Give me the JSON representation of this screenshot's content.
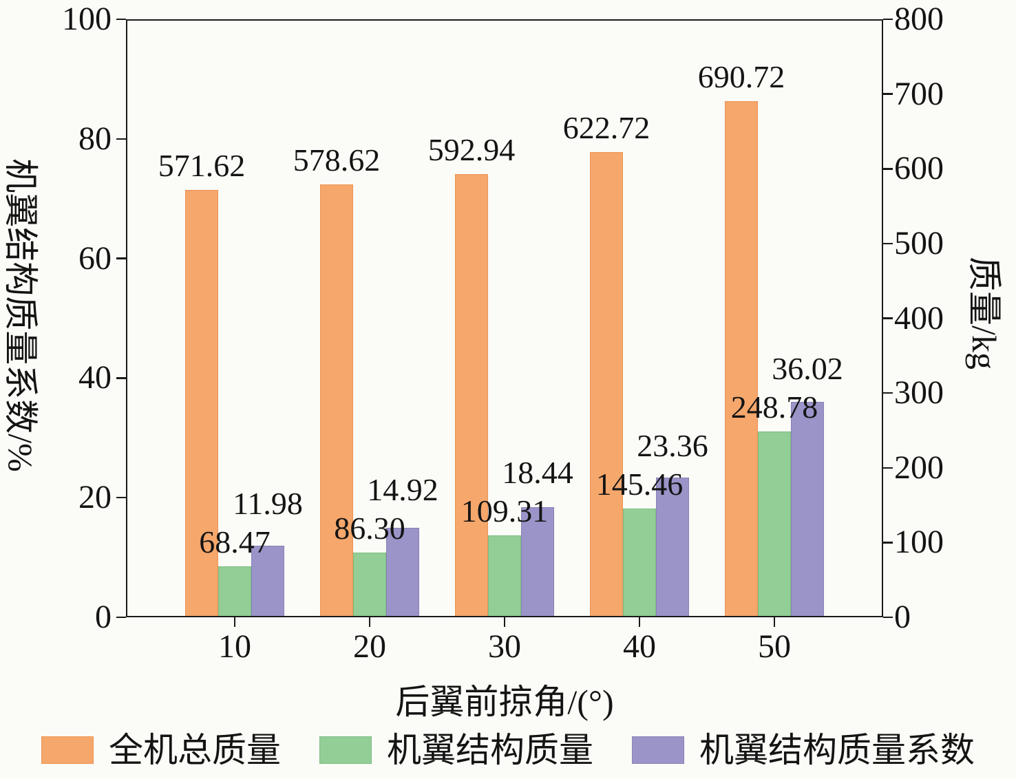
{
  "chart_data": {
    "type": "bar",
    "categories": [
      "10",
      "20",
      "30",
      "40",
      "50"
    ],
    "xlabel": "后翼前掠角/(°)",
    "ylabel_left": "机翼结构质量系数/%",
    "ylabel_right": "质量/kg",
    "ylim_left": [
      0,
      100
    ],
    "ylim_right": [
      0,
      800
    ],
    "left_ticks": [
      "0",
      "20",
      "40",
      "60",
      "80",
      "100"
    ],
    "right_ticks": [
      "0",
      "100",
      "200",
      "300",
      "400",
      "500",
      "600",
      "700",
      "800"
    ],
    "grid": false,
    "legend_position": "bottom",
    "axis_color": "#1a1a1a",
    "background_color": "#FBFBF7",
    "series": [
      {
        "key": "total-mass",
        "name": "全机总质量",
        "axis": "right",
        "color": "#F5A76C",
        "edge_color": "#EC9453",
        "values": [
          571.62,
          578.62,
          592.94,
          622.72,
          690.72
        ],
        "labels": [
          "571.62",
          "578.62",
          "592.94",
          "622.72",
          "690.72"
        ]
      },
      {
        "key": "wing-structure-mass",
        "name": "机翼结构质量",
        "axis": "right",
        "color": "#92CE96",
        "edge_color": "#7CBD82",
        "values": [
          68.47,
          86.3,
          109.31,
          145.46,
          248.78
        ],
        "labels": [
          "68.47",
          "86.30",
          "109.31",
          "145.46",
          "248.78"
        ]
      },
      {
        "key": "wing-structure-mass-coefficient",
        "name": "机翼结构质量系数",
        "axis": "left",
        "color": "#9A94C8",
        "edge_color": "#8882B7",
        "values": [
          11.98,
          14.92,
          18.44,
          23.36,
          36.02
        ],
        "labels": [
          "11.98",
          "14.92",
          "18.44",
          "23.36",
          "36.02"
        ]
      }
    ]
  }
}
